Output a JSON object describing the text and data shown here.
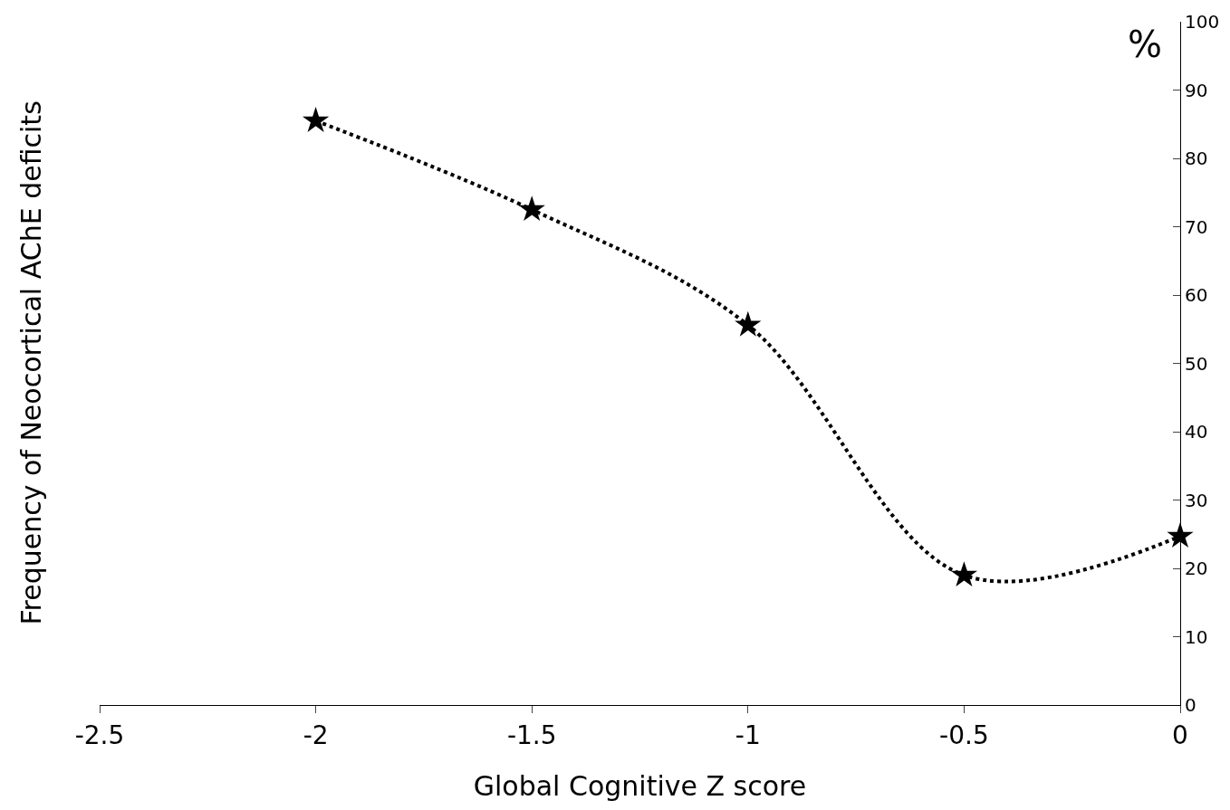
{
  "chart_data": {
    "type": "line",
    "xlabel": "Global Cognitive Z score",
    "ylabel": "Frequency of Neocortical AChE deficits",
    "annotations": [
      "%"
    ],
    "x": [
      -2,
      -1.5,
      -1,
      -0.5,
      0
    ],
    "series": [
      {
        "color": "#000000",
        "values": [
          85.5,
          72.5,
          55.6,
          19.0,
          24.7
        ]
      }
    ],
    "xlim": [
      -2.5,
      0
    ],
    "xticks": [
      -2.5,
      -2,
      -1.5,
      -1,
      -0.5,
      0
    ],
    "ylim": [
      0,
      100
    ],
    "yticks": [
      0,
      10,
      20,
      30,
      40,
      50,
      60,
      70,
      80,
      90,
      100
    ],
    "marker": "star",
    "line_style": "dotted"
  }
}
